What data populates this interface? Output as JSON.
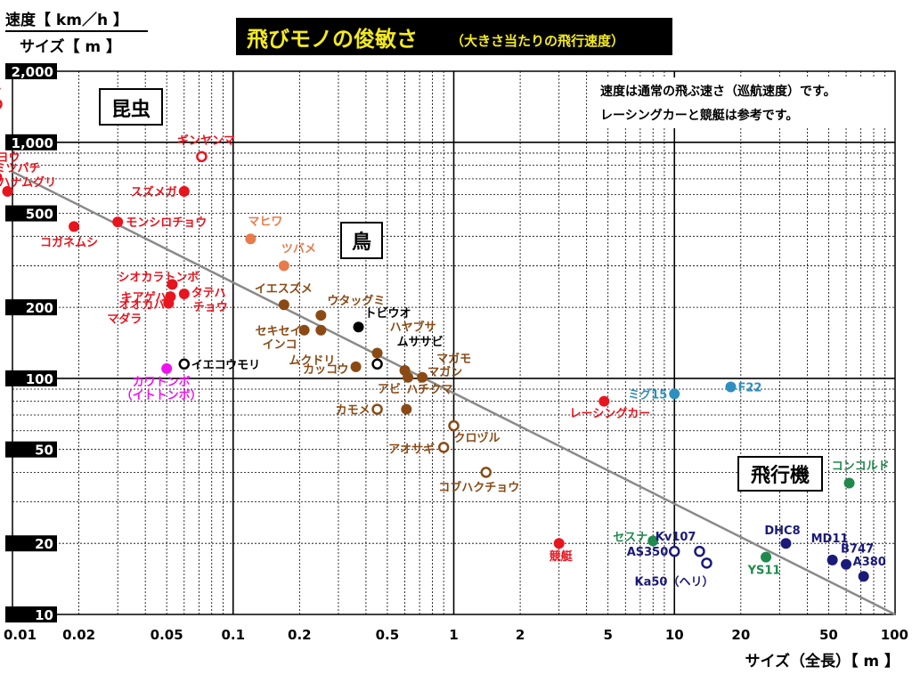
{
  "header": {
    "y_unit_top": "速度【 km／h 】",
    "y_unit_bottom": "サイズ【 m 】",
    "title_main": "飛びモノの俊敏さ",
    "title_sub": "（大きさ当たりの飛行速度）"
  },
  "notes": {
    "line1": "速度は通常の飛ぶ速さ（巡航速度）です。",
    "line2": "レーシングカーと競艇は参考です。"
  },
  "groups": {
    "insects": "昆虫",
    "birds": "鳥",
    "aircraft": "飛行機"
  },
  "x_axis_label": "サイズ（全長）【 m 】",
  "chart_data": {
    "type": "scatter",
    "x_scale": "log",
    "y_scale": "log",
    "xlim": [
      0.01,
      100
    ],
    "ylim": [
      10,
      2000
    ],
    "x_ticks": [
      {
        "value": 0.01,
        "label": "0.01"
      },
      {
        "value": 0.02,
        "label": "0.02"
      },
      {
        "value": 0.05,
        "label": "0.05"
      },
      {
        "value": 0.1,
        "label": "0.1"
      },
      {
        "value": 0.2,
        "label": "0.2"
      },
      {
        "value": 0.5,
        "label": "0.5"
      },
      {
        "value": 1,
        "label": "1"
      },
      {
        "value": 2,
        "label": "2"
      },
      {
        "value": 5,
        "label": "5"
      },
      {
        "value": 10,
        "label": "10"
      },
      {
        "value": 20,
        "label": "20"
      },
      {
        "value": 50,
        "label": "50"
      },
      {
        "value": 100,
        "label": "100"
      }
    ],
    "y_ticks": [
      {
        "value": 2000,
        "label": "2,000"
      },
      {
        "value": 1000,
        "label": "1,000"
      },
      {
        "value": 500,
        "label": "500"
      },
      {
        "value": 200,
        "label": "200"
      },
      {
        "value": 100,
        "label": "100"
      },
      {
        "value": 50,
        "label": "50"
      },
      {
        "value": 20,
        "label": "20"
      },
      {
        "value": 10,
        "label": "10"
      }
    ],
    "reference_line": {
      "from": [
        0.01,
        750
      ],
      "to": [
        100,
        10
      ]
    },
    "colors": {
      "insect": "#e8141e",
      "dragonfly": "#ee12ee",
      "butterfly": "#e87b49",
      "bird": "#8b4a14",
      "black": "#000000",
      "teal": "#1f8a4c",
      "jet_blue": "#2e8fbf",
      "navy": "#1a1a7a"
    },
    "points": [
      {
        "label": "ミツバチ",
        "x": 0.0085,
        "y": 1450,
        "color": "#e8141e",
        "hollow": true,
        "anchor": "end",
        "dx": 5,
        "dy": -12
      },
      {
        "label": "ギンヤンマ",
        "x": 0.072,
        "y": 870,
        "color": "#e8141e",
        "hollow": true,
        "anchor": "middle",
        "dx": 5,
        "dy": -14
      },
      {
        "label": "",
        "x": 0.0085,
        "y": 710,
        "color": "#e8141e"
      },
      {
        "label": "",
        "x": 0.0095,
        "y": 620,
        "color": "#e8141e"
      },
      {
        "label": "スズメガ",
        "x": 0.06,
        "y": 620,
        "color": "#e8141e",
        "anchor": "end",
        "dx": -8,
        "dy": 5
      },
      {
        "label": "モンシロチョウ",
        "x": 0.03,
        "y": 460,
        "color": "#e8141e",
        "anchor": "start",
        "dx": 9,
        "dy": 5
      },
      {
        "label": "コガネムシ",
        "x": 0.019,
        "y": 440,
        "color": "#e8141e",
        "anchor": "start",
        "dx": -38,
        "dy": 22
      },
      {
        "label": "",
        "x": 0.053,
        "y": 250,
        "color": "#e8141e"
      },
      {
        "label": "",
        "x": 0.052,
        "y": 222,
        "color": "#e8141e"
      },
      {
        "label": "タテハ",
        "x": 0.06,
        "y": 228,
        "color": "#e8141e",
        "anchor": "start",
        "dx": 8,
        "dy": 3
      },
      {
        "label": "チョウ",
        "x": 0.06,
        "y": 228,
        "color": "#e8141e",
        "anchor": "start",
        "dx": 10,
        "dy": 19,
        "no_marker": true
      },
      {
        "label": "",
        "x": 0.051,
        "y": 208,
        "color": "#e8141e"
      },
      {
        "label": "",
        "x": 0.05,
        "y": 110,
        "color": "#ee12ee"
      },
      {
        "label": "イエコウモリ",
        "x": 0.06,
        "y": 115,
        "color": "#000000",
        "hollow": true,
        "anchor": "start",
        "dx": 8,
        "dy": 5
      },
      {
        "label": "マヒワ",
        "x": 0.12,
        "y": 390,
        "color": "#e87b49",
        "anchor": "start",
        "dx": -3,
        "dy": -15
      },
      {
        "label": "ツバメ",
        "x": 0.17,
        "y": 300,
        "color": "#e87b49",
        "anchor": "start",
        "dx": -3,
        "dy": -15
      },
      {
        "label": "",
        "x": 0.17,
        "y": 205,
        "color": "#8b4a14"
      },
      {
        "label": "",
        "x": 0.21,
        "y": 160,
        "color": "#8b4a14"
      },
      {
        "label": "",
        "x": 0.25,
        "y": 185,
        "color": "#8b4a14"
      },
      {
        "label": "",
        "x": 0.25,
        "y": 160,
        "color": "#8b4a14"
      },
      {
        "label": "",
        "x": 0.36,
        "y": 112,
        "color": "#8b4a14"
      },
      {
        "label": "",
        "x": 0.45,
        "y": 128,
        "color": "#8b4a14"
      },
      {
        "label": "",
        "x": 0.6,
        "y": 108,
        "color": "#8b4a14"
      },
      {
        "label": "",
        "x": 0.62,
        "y": 101,
        "color": "#8b4a14"
      },
      {
        "label": "",
        "x": 0.72,
        "y": 101,
        "color": "#8b4a14"
      },
      {
        "label": "",
        "x": 0.61,
        "y": 74,
        "color": "#8b4a14"
      },
      {
        "label": "カモメ",
        "x": 0.45,
        "y": 74,
        "color": "#8b4a14",
        "hollow": true,
        "anchor": "end",
        "dx": -8,
        "dy": 5
      },
      {
        "label": "",
        "x": 1.0,
        "y": 63,
        "color": "#8b4a14",
        "hollow": true
      },
      {
        "label": "アオサギ",
        "x": 0.9,
        "y": 51,
        "color": "#8b4a14",
        "hollow": true,
        "anchor": "end",
        "dx": -10,
        "dy": 6
      },
      {
        "label": "コブハクチョウ",
        "x": 1.4,
        "y": 40,
        "color": "#8b4a14",
        "hollow": true,
        "anchor": "middle",
        "dx": -8,
        "dy": 21
      },
      {
        "label": "トビウオ",
        "x": 0.37,
        "y": 165,
        "color": "#000000",
        "anchor": "start",
        "dx": 7,
        "dy": -11
      },
      {
        "label": "",
        "x": 0.45,
        "y": 115,
        "color": "#000000",
        "hollow": true
      },
      {
        "label": "レーシングカー",
        "x": 4.8,
        "y": 80,
        "color": "#e8141e",
        "anchor": "end",
        "dx": 52,
        "dy": 18
      },
      {
        "label": "競艇",
        "x": 3.0,
        "y": 20,
        "color": "#e8141e",
        "anchor": "middle",
        "dx": 2,
        "dy": 19
      },
      {
        "label": "ミグ15",
        "x": 10,
        "y": 86,
        "color": "#2e8fbf",
        "anchor": "end",
        "dx": -8,
        "dy": 5
      },
      {
        "label": "F22",
        "x": 18,
        "y": 92,
        "color": "#2e8fbf",
        "anchor": "start",
        "dx": 8,
        "dy": 5
      },
      {
        "label": "コンコルド",
        "x": 62,
        "y": 36,
        "color": "#1f8a4c",
        "anchor": "start",
        "dx": -20,
        "dy": -15
      },
      {
        "label": "セスナ",
        "x": 8,
        "y": 20.5,
        "color": "#1f8a4c",
        "anchor": "end",
        "dx": -6,
        "dy": 0
      },
      {
        "label": "AS350",
        "x": 10,
        "y": 18.5,
        "color": "#1a1a7a",
        "hollow": true,
        "anchor": "end",
        "dx": -7,
        "dy": 5
      },
      {
        "label": "Kv107",
        "x": 13,
        "y": 18.5,
        "color": "#1a1a7a",
        "hollow": true,
        "anchor": "end",
        "dx": -4,
        "dy": -12
      },
      {
        "label": "Ka50（ヘリ）",
        "x": 14,
        "y": 16.5,
        "color": "#1a1a7a",
        "hollow": true,
        "anchor": "end",
        "dx": 8,
        "dy": 25
      },
      {
        "label": "YS11",
        "x": 26,
        "y": 17.5,
        "color": "#1f8a4c",
        "anchor": "middle",
        "dx": -2,
        "dy": 19
      },
      {
        "label": "DHC8",
        "x": 32,
        "y": 20,
        "color": "#1a1a7a",
        "anchor": "start",
        "dx": -24,
        "dy": -10
      },
      {
        "label": "MD11",
        "x": 52,
        "y": 17,
        "color": "#1a1a7a",
        "anchor": "start",
        "dx": -24,
        "dy": -20
      },
      {
        "label": "B747",
        "x": 60,
        "y": 16.3,
        "color": "#1a1a7a",
        "anchor": "start",
        "dx": -6,
        "dy": -13
      },
      {
        "label": "A380",
        "x": 72,
        "y": 14.5,
        "color": "#1a1a7a",
        "anchor": "start",
        "dx": -12,
        "dy": -12
      }
    ],
    "free_labels": [
      {
        "text": "セイヨウ",
        "x": 0.0085,
        "y": 710,
        "color": "#e8141e",
        "anchor": "start",
        "dx": -26,
        "dy": -18
      },
      {
        "text": "ミツバチ",
        "x": 0.0085,
        "y": 710,
        "color": "#e8141e",
        "anchor": "start",
        "dx": -3,
        "dy": -6
      },
      {
        "text": "ハナムグリ",
        "x": 0.0095,
        "y": 620,
        "color": "#e8141e",
        "anchor": "start",
        "dx": -10,
        "dy": -6
      },
      {
        "text": "シオカラトンボ",
        "x": 0.053,
        "y": 250,
        "color": "#e8141e",
        "anchor": "end",
        "dx": 30,
        "dy": -4
      },
      {
        "text": "キアゲハ",
        "x": 0.052,
        "y": 222,
        "color": "#e8141e",
        "anchor": "end",
        "dx": -4,
        "dy": 5
      },
      {
        "text": "オオカバ",
        "x": 0.051,
        "y": 208,
        "color": "#e8141e",
        "anchor": "end",
        "dx": -4,
        "dy": 6
      },
      {
        "text": "マダラ",
        "x": 0.051,
        "y": 208,
        "color": "#e8141e",
        "anchor": "end",
        "dx": -30,
        "dy": 22
      },
      {
        "text": "カワトンボ",
        "x": 0.05,
        "y": 110,
        "color": "#ee12ee",
        "anchor": "middle",
        "dx": -6,
        "dy": 19
      },
      {
        "text": "（イトトンボ）",
        "x": 0.05,
        "y": 110,
        "color": "#ee12ee",
        "anchor": "middle",
        "dx": -6,
        "dy": 34
      },
      {
        "text": "イエスズメ",
        "x": 0.17,
        "y": 205,
        "color": "#8b4a14",
        "anchor": "start",
        "dx": -33,
        "dy": -14
      },
      {
        "text": "ウタッグミ",
        "x": 0.25,
        "y": 185,
        "color": "#8b4a14",
        "anchor": "start",
        "dx": 7,
        "dy": -12
      },
      {
        "text": "セキセイ",
        "x": 0.21,
        "y": 160,
        "color": "#8b4a14",
        "anchor": "end",
        "dx": -3,
        "dy": 5
      },
      {
        "text": "インコ",
        "x": 0.21,
        "y": 160,
        "color": "#8b4a14",
        "anchor": "end",
        "dx": -8,
        "dy": 20
      },
      {
        "text": "ムクドリ",
        "x": 0.25,
        "y": 160,
        "color": "#8b4a14",
        "anchor": "end",
        "dx": 16,
        "dy": 38
      },
      {
        "text": "カッコウ",
        "x": 0.36,
        "y": 112,
        "color": "#8b4a14",
        "anchor": "end",
        "dx": -8,
        "dy": 7
      },
      {
        "text": "ハヤブサ",
        "x": 0.45,
        "y": 128,
        "color": "#8b4a14",
        "anchor": "start",
        "dx": 14,
        "dy": -25
      },
      {
        "text": "ムササビ",
        "x": 0.45,
        "y": 115,
        "color": "#000000",
        "anchor": "start",
        "dx": 22,
        "dy": -21
      },
      {
        "text": "マガモ",
        "x": 0.72,
        "y": 101,
        "color": "#8b4a14",
        "anchor": "start",
        "dx": 16,
        "dy": -17
      },
      {
        "text": "マガン",
        "x": 0.72,
        "y": 101,
        "color": "#8b4a14",
        "anchor": "start",
        "dx": 6,
        "dy": -2
      },
      {
        "text": "アビ",
        "x": 0.62,
        "y": 101,
        "color": "#8b4a14",
        "anchor": "end",
        "dx": -8,
        "dy": 17
      },
      {
        "text": "ハチクマ",
        "x": 0.61,
        "y": 74,
        "color": "#8b4a14",
        "anchor": "start",
        "dx": 0,
        "dy": -18
      },
      {
        "text": "クロヅル",
        "x": 1.0,
        "y": 63,
        "color": "#8b4a14",
        "anchor": "start",
        "dx": 0,
        "dy": 18
      }
    ]
  }
}
